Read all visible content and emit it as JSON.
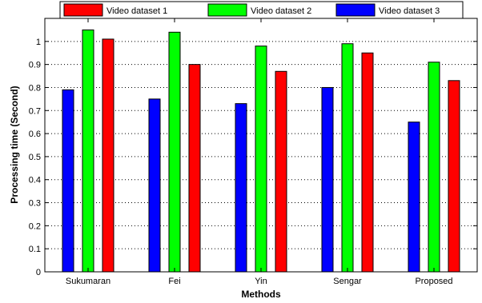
{
  "chart_data": {
    "type": "bar",
    "categories": [
      "Sukumaran",
      "Fei",
      "Yin",
      "Sengar",
      "Proposed"
    ],
    "series": [
      {
        "name": "Video dataset 3",
        "color": "#0000ff",
        "values": [
          0.79,
          0.75,
          0.73,
          0.8,
          0.65
        ]
      },
      {
        "name": "Video dataset 2",
        "color": "#00ff00",
        "values": [
          1.05,
          1.04,
          0.98,
          0.99,
          0.91
        ]
      },
      {
        "name": "Video dataset 1",
        "color": "#ff0000",
        "values": [
          1.01,
          0.9,
          0.87,
          0.95,
          0.83
        ]
      }
    ],
    "legend_order": [
      2,
      1,
      0
    ],
    "legend_position": "top",
    "xlabel": "Methods",
    "ylabel": "Processing time (Second)",
    "ylim": [
      0,
      1.1
    ],
    "yticks": [
      "0",
      "0.1",
      "0.2",
      "0.3",
      "0.4",
      "0.5",
      "0.6",
      "0.7",
      "0.8",
      "0.9",
      "1"
    ],
    "grid": true
  }
}
